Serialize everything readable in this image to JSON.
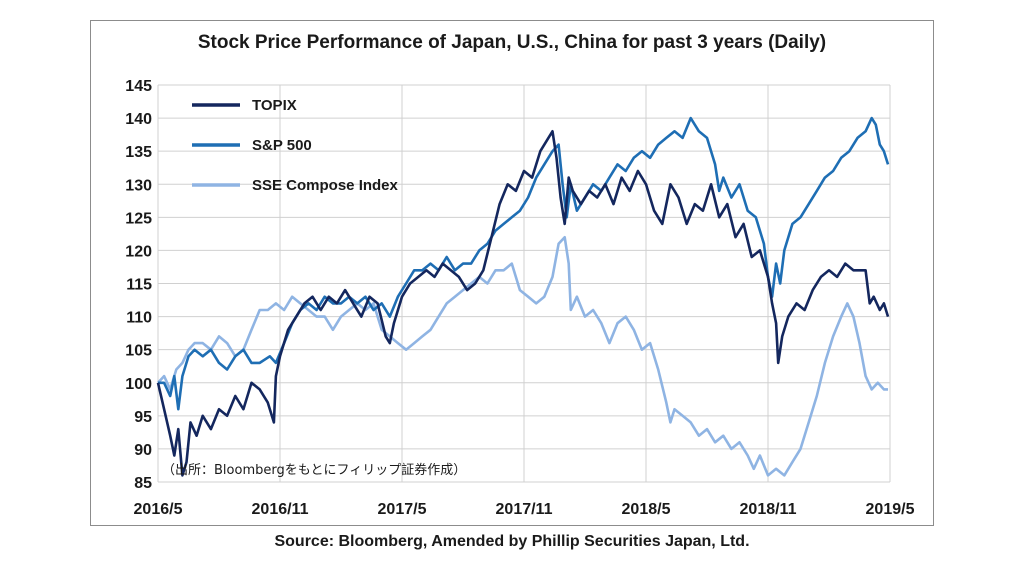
{
  "chart_data": {
    "type": "line",
    "title": "Stock Price Performance of Japan, U.S., China for past 3 years (Daily)",
    "source": "Source: Bloomberg, Amended by Phillip Securities Japan, Ltd.",
    "annotation": "（出所：Bloombergをもとにフィリップ証券作成）",
    "ylim": [
      85,
      145
    ],
    "yticks": [
      85,
      90,
      95,
      100,
      105,
      110,
      115,
      120,
      125,
      130,
      135,
      140,
      145
    ],
    "xlim": [
      0,
      36
    ],
    "xticks": [
      {
        "x": 0,
        "label": "2016/5"
      },
      {
        "x": 6,
        "label": "2016/11"
      },
      {
        "x": 12,
        "label": "2017/5"
      },
      {
        "x": 18,
        "label": "2017/11"
      },
      {
        "x": 24,
        "label": "2018/5"
      },
      {
        "x": 30,
        "label": "2018/11"
      },
      {
        "x": 36,
        "label": "2019/5"
      }
    ],
    "grid": true,
    "legend": "top-left",
    "series": [
      {
        "name": "TOPIX",
        "color": "#14275e",
        "points": [
          [
            0,
            100
          ],
          [
            0.3,
            96
          ],
          [
            0.6,
            92
          ],
          [
            0.8,
            89
          ],
          [
            1.0,
            93
          ],
          [
            1.2,
            86
          ],
          [
            1.4,
            88
          ],
          [
            1.6,
            94
          ],
          [
            1.9,
            92
          ],
          [
            2.2,
            95
          ],
          [
            2.6,
            93
          ],
          [
            3,
            96
          ],
          [
            3.4,
            95
          ],
          [
            3.8,
            98
          ],
          [
            4.2,
            96
          ],
          [
            4.6,
            100
          ],
          [
            5,
            99
          ],
          [
            5.4,
            97
          ],
          [
            5.7,
            94
          ],
          [
            5.8,
            101
          ],
          [
            6.0,
            104
          ],
          [
            6.4,
            108
          ],
          [
            6.8,
            110
          ],
          [
            7.2,
            112
          ],
          [
            7.6,
            113
          ],
          [
            8,
            111
          ],
          [
            8.4,
            113
          ],
          [
            8.8,
            112
          ],
          [
            9.2,
            114
          ],
          [
            9.6,
            112
          ],
          [
            10,
            110
          ],
          [
            10.4,
            113
          ],
          [
            10.8,
            112
          ],
          [
            11.2,
            107
          ],
          [
            11.4,
            106
          ],
          [
            11.6,
            109
          ],
          [
            12,
            113
          ],
          [
            12.4,
            115
          ],
          [
            12.8,
            116
          ],
          [
            13.2,
            117
          ],
          [
            13.6,
            116
          ],
          [
            14,
            118
          ],
          [
            14.4,
            117
          ],
          [
            14.8,
            116
          ],
          [
            15.2,
            114
          ],
          [
            15.6,
            115
          ],
          [
            16,
            117
          ],
          [
            16.4,
            122
          ],
          [
            16.8,
            127
          ],
          [
            17.2,
            130
          ],
          [
            17.6,
            129
          ],
          [
            18,
            132
          ],
          [
            18.4,
            131
          ],
          [
            18.8,
            135
          ],
          [
            19.2,
            137
          ],
          [
            19.4,
            138
          ],
          [
            19.6,
            134
          ],
          [
            19.8,
            128
          ],
          [
            20,
            124
          ],
          [
            20.2,
            131
          ],
          [
            20.4,
            129
          ],
          [
            20.8,
            127
          ],
          [
            21.2,
            129
          ],
          [
            21.6,
            128
          ],
          [
            22,
            130
          ],
          [
            22.4,
            127
          ],
          [
            22.8,
            131
          ],
          [
            23.2,
            129
          ],
          [
            23.6,
            132
          ],
          [
            24,
            130
          ],
          [
            24.4,
            126
          ],
          [
            24.8,
            124
          ],
          [
            25.2,
            130
          ],
          [
            25.6,
            128
          ],
          [
            26,
            124
          ],
          [
            26.4,
            127
          ],
          [
            26.8,
            126
          ],
          [
            27.2,
            130
          ],
          [
            27.6,
            125
          ],
          [
            28,
            127
          ],
          [
            28.4,
            122
          ],
          [
            28.8,
            124
          ],
          [
            29.2,
            119
          ],
          [
            29.6,
            120
          ],
          [
            30.0,
            116
          ],
          [
            30.2,
            112
          ],
          [
            30.4,
            109
          ],
          [
            30.5,
            103
          ],
          [
            30.7,
            107
          ],
          [
            31,
            110
          ],
          [
            31.4,
            112
          ],
          [
            31.8,
            111
          ],
          [
            32.2,
            114
          ],
          [
            32.6,
            116
          ],
          [
            33,
            117
          ],
          [
            33.4,
            116
          ],
          [
            33.8,
            118
          ],
          [
            34.2,
            117
          ],
          [
            34.6,
            117
          ],
          [
            34.8,
            117
          ],
          [
            35.0,
            112
          ],
          [
            35.2,
            113
          ],
          [
            35.5,
            111
          ],
          [
            35.7,
            112
          ],
          [
            35.9,
            110
          ]
        ]
      },
      {
        "name": "S&P 500",
        "color": "#1e6eb4",
        "points": [
          [
            0,
            100
          ],
          [
            0.3,
            100
          ],
          [
            0.6,
            98
          ],
          [
            0.8,
            101
          ],
          [
            1.0,
            96
          ],
          [
            1.2,
            101
          ],
          [
            1.5,
            104
          ],
          [
            1.8,
            105
          ],
          [
            2.2,
            104
          ],
          [
            2.6,
            105
          ],
          [
            3,
            103
          ],
          [
            3.4,
            102
          ],
          [
            3.8,
            104
          ],
          [
            4.2,
            105
          ],
          [
            4.6,
            103
          ],
          [
            5,
            103
          ],
          [
            5.5,
            104
          ],
          [
            5.8,
            103
          ],
          [
            6.2,
            106
          ],
          [
            6.6,
            109
          ],
          [
            7,
            111
          ],
          [
            7.4,
            112
          ],
          [
            7.8,
            111
          ],
          [
            8.2,
            113
          ],
          [
            8.6,
            112
          ],
          [
            9,
            112
          ],
          [
            9.4,
            113
          ],
          [
            9.8,
            112
          ],
          [
            10.2,
            113
          ],
          [
            10.6,
            111
          ],
          [
            11,
            112
          ],
          [
            11.4,
            110
          ],
          [
            11.8,
            113
          ],
          [
            12.2,
            115
          ],
          [
            12.6,
            117
          ],
          [
            13,
            117
          ],
          [
            13.4,
            118
          ],
          [
            13.8,
            117
          ],
          [
            14.2,
            119
          ],
          [
            14.6,
            117
          ],
          [
            15,
            118
          ],
          [
            15.4,
            118
          ],
          [
            15.8,
            120
          ],
          [
            16.2,
            121
          ],
          [
            16.6,
            123
          ],
          [
            17,
            124
          ],
          [
            17.4,
            125
          ],
          [
            17.8,
            126
          ],
          [
            18.2,
            128
          ],
          [
            18.6,
            131
          ],
          [
            19,
            133
          ],
          [
            19.4,
            135
          ],
          [
            19.7,
            136
          ],
          [
            19.9,
            130
          ],
          [
            20.1,
            125
          ],
          [
            20.3,
            130
          ],
          [
            20.6,
            126
          ],
          [
            21,
            128
          ],
          [
            21.4,
            130
          ],
          [
            21.8,
            129
          ],
          [
            22.2,
            131
          ],
          [
            22.6,
            133
          ],
          [
            23,
            132
          ],
          [
            23.4,
            134
          ],
          [
            23.8,
            135
          ],
          [
            24.2,
            134
          ],
          [
            24.6,
            136
          ],
          [
            25,
            137
          ],
          [
            25.4,
            138
          ],
          [
            25.8,
            137
          ],
          [
            26.2,
            140
          ],
          [
            26.6,
            138
          ],
          [
            27,
            137
          ],
          [
            27.4,
            133
          ],
          [
            27.6,
            129
          ],
          [
            27.8,
            131
          ],
          [
            28.2,
            128
          ],
          [
            28.6,
            130
          ],
          [
            29,
            126
          ],
          [
            29.4,
            125
          ],
          [
            29.8,
            121
          ],
          [
            30.0,
            116
          ],
          [
            30.2,
            113
          ],
          [
            30.4,
            118
          ],
          [
            30.6,
            115
          ],
          [
            30.8,
            120
          ],
          [
            31.2,
            124
          ],
          [
            31.6,
            125
          ],
          [
            32,
            127
          ],
          [
            32.4,
            129
          ],
          [
            32.8,
            131
          ],
          [
            33.2,
            132
          ],
          [
            33.6,
            134
          ],
          [
            34,
            135
          ],
          [
            34.4,
            137
          ],
          [
            34.8,
            138
          ],
          [
            35.1,
            140
          ],
          [
            35.3,
            139
          ],
          [
            35.5,
            136
          ],
          [
            35.7,
            135
          ],
          [
            35.9,
            133
          ]
        ]
      },
      {
        "name": "SSE Compose Index",
        "color": "#8fb4e3",
        "points": [
          [
            0,
            100
          ],
          [
            0.3,
            101
          ],
          [
            0.6,
            99
          ],
          [
            0.9,
            102
          ],
          [
            1.2,
            103
          ],
          [
            1.5,
            105
          ],
          [
            1.8,
            106
          ],
          [
            2.2,
            106
          ],
          [
            2.6,
            105
          ],
          [
            3,
            107
          ],
          [
            3.4,
            106
          ],
          [
            3.8,
            104
          ],
          [
            4.2,
            105
          ],
          [
            4.6,
            108
          ],
          [
            5,
            111
          ],
          [
            5.4,
            111
          ],
          [
            5.8,
            112
          ],
          [
            6.2,
            111
          ],
          [
            6.6,
            113
          ],
          [
            7,
            112
          ],
          [
            7.4,
            111
          ],
          [
            7.8,
            110
          ],
          [
            8.2,
            110
          ],
          [
            8.6,
            108
          ],
          [
            9,
            110
          ],
          [
            9.4,
            111
          ],
          [
            9.8,
            112
          ],
          [
            10.2,
            111
          ],
          [
            10.6,
            112
          ],
          [
            11,
            108
          ],
          [
            11.4,
            107
          ],
          [
            11.8,
            106
          ],
          [
            12.2,
            105
          ],
          [
            12.6,
            106
          ],
          [
            13,
            107
          ],
          [
            13.4,
            108
          ],
          [
            13.8,
            110
          ],
          [
            14.2,
            112
          ],
          [
            14.6,
            113
          ],
          [
            15,
            114
          ],
          [
            15.4,
            115
          ],
          [
            15.8,
            116
          ],
          [
            16.2,
            115
          ],
          [
            16.6,
            117
          ],
          [
            17,
            117
          ],
          [
            17.4,
            118
          ],
          [
            17.8,
            114
          ],
          [
            18.2,
            113
          ],
          [
            18.6,
            112
          ],
          [
            19,
            113
          ],
          [
            19.4,
            116
          ],
          [
            19.7,
            121
          ],
          [
            20,
            122
          ],
          [
            20.2,
            118
          ],
          [
            20.3,
            111
          ],
          [
            20.6,
            113
          ],
          [
            21,
            110
          ],
          [
            21.4,
            111
          ],
          [
            21.8,
            109
          ],
          [
            22.2,
            106
          ],
          [
            22.6,
            109
          ],
          [
            23,
            110
          ],
          [
            23.4,
            108
          ],
          [
            23.8,
            105
          ],
          [
            24.2,
            106
          ],
          [
            24.6,
            102
          ],
          [
            25,
            97
          ],
          [
            25.2,
            94
          ],
          [
            25.4,
            96
          ],
          [
            25.8,
            95
          ],
          [
            26.2,
            94
          ],
          [
            26.6,
            92
          ],
          [
            27,
            93
          ],
          [
            27.4,
            91
          ],
          [
            27.8,
            92
          ],
          [
            28.2,
            90
          ],
          [
            28.6,
            91
          ],
          [
            29,
            89
          ],
          [
            29.3,
            87
          ],
          [
            29.6,
            89
          ],
          [
            30,
            86
          ],
          [
            30.4,
            87
          ],
          [
            30.8,
            86
          ],
          [
            31.2,
            88
          ],
          [
            31.6,
            90
          ],
          [
            32,
            94
          ],
          [
            32.4,
            98
          ],
          [
            32.8,
            103
          ],
          [
            33.2,
            107
          ],
          [
            33.6,
            110
          ],
          [
            33.9,
            112
          ],
          [
            34.2,
            110
          ],
          [
            34.5,
            106
          ],
          [
            34.8,
            101
          ],
          [
            35.1,
            99
          ],
          [
            35.4,
            100
          ],
          [
            35.7,
            99
          ],
          [
            35.9,
            99
          ]
        ]
      }
    ]
  }
}
